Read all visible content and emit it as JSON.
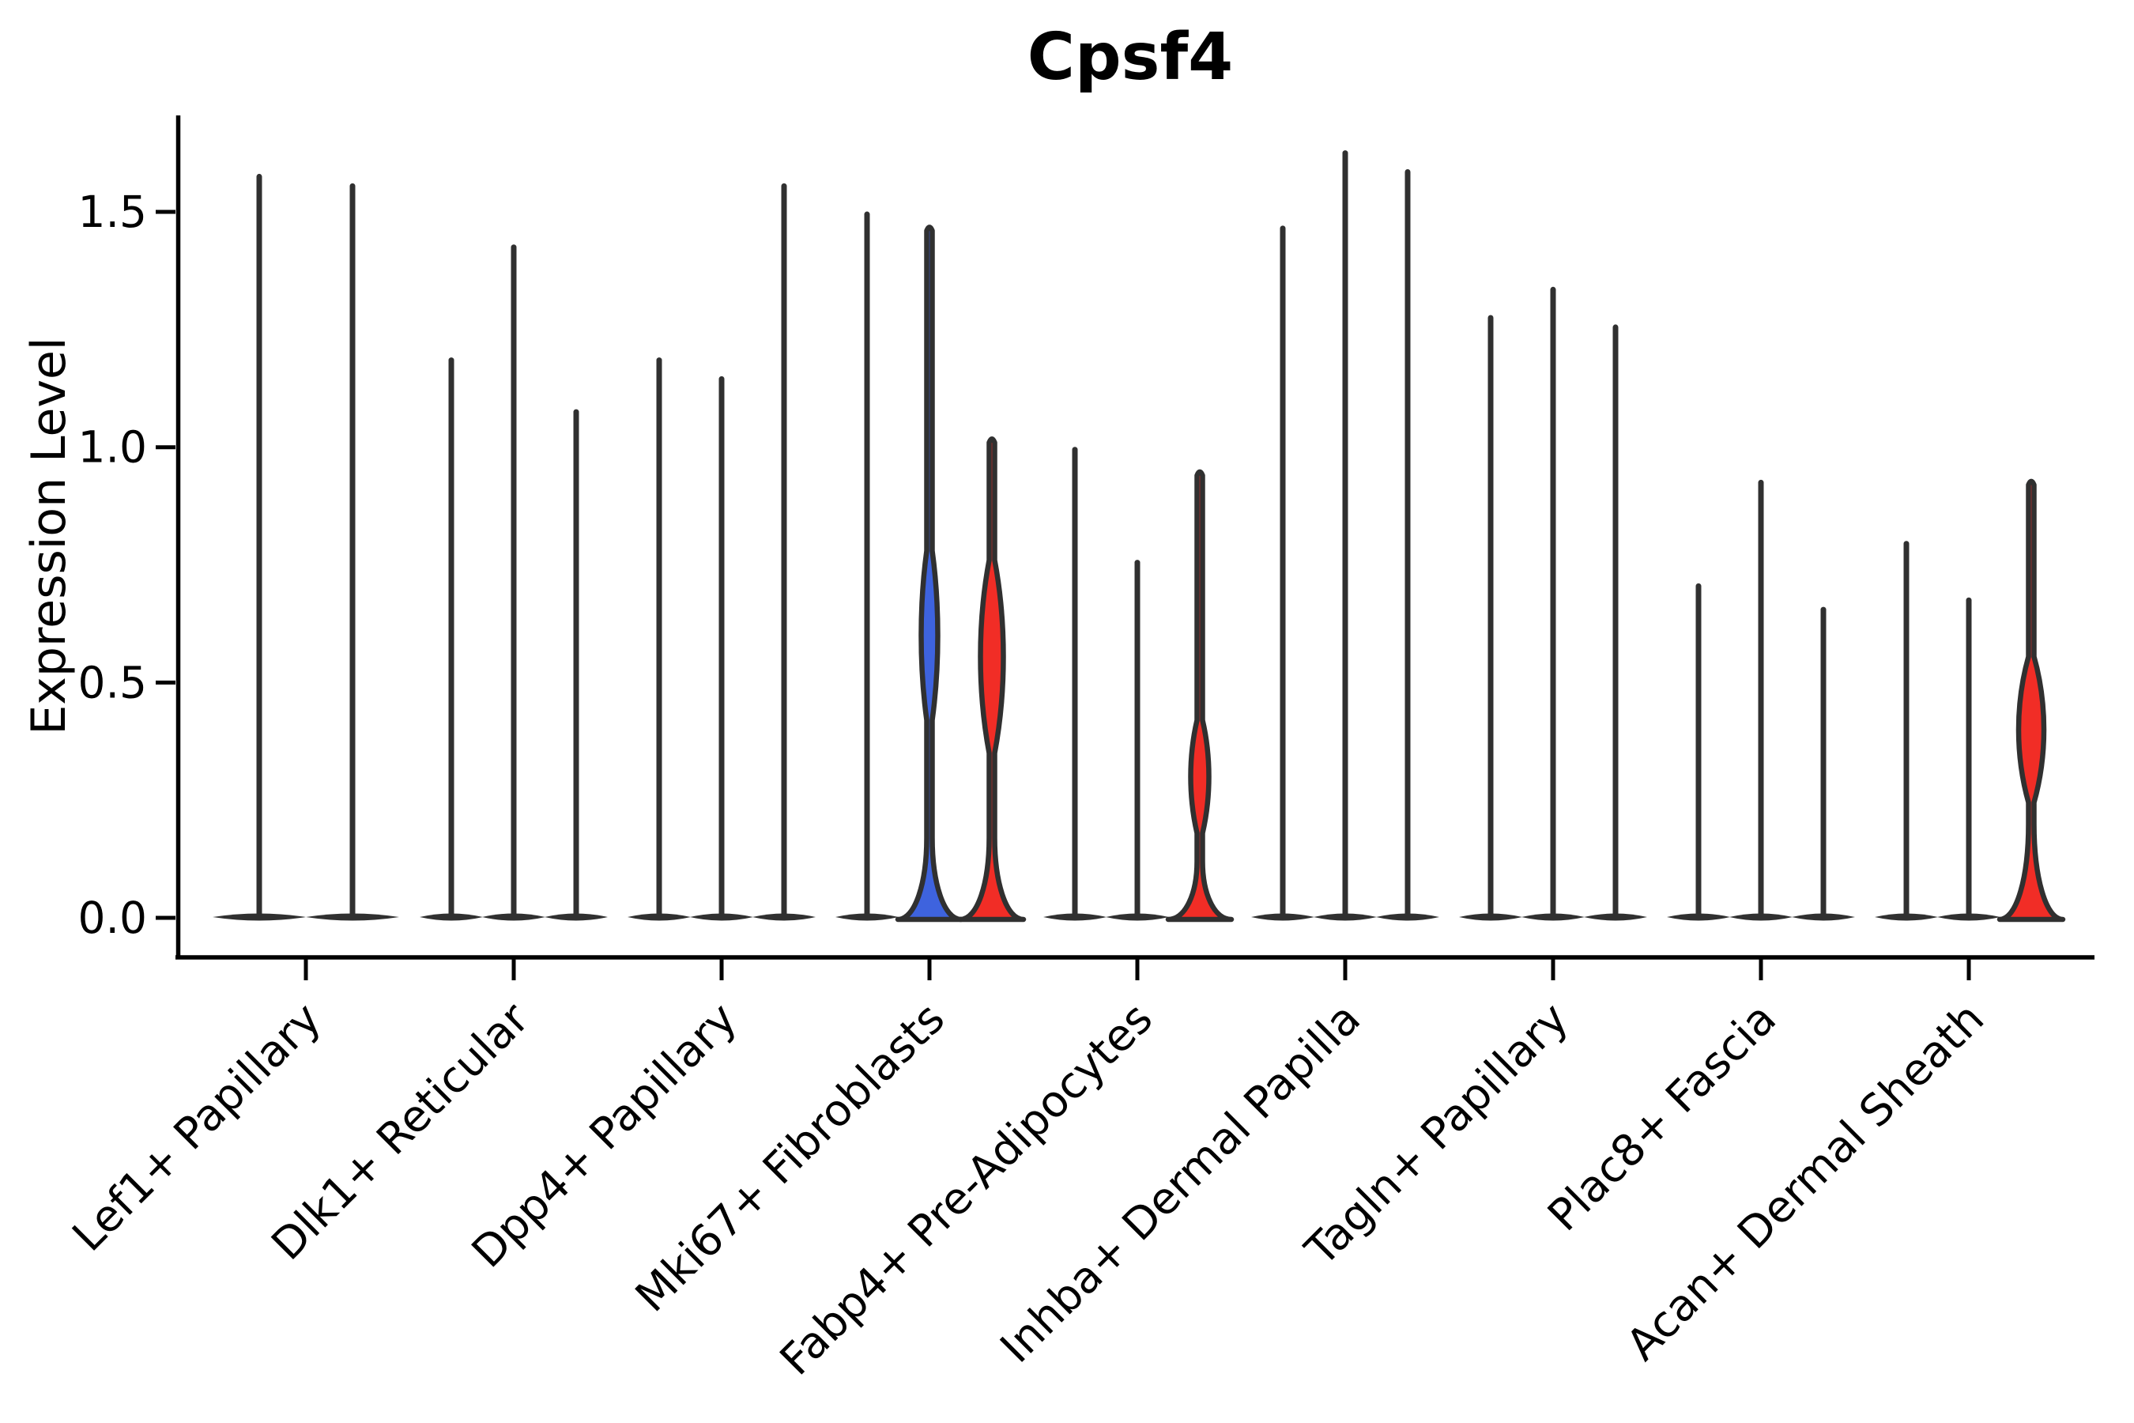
{
  "chart_data": {
    "type": "violin",
    "title": "Cpsf4",
    "ylabel": "Expression Level",
    "xlabel": "",
    "ylim": [
      0,
      1.7
    ],
    "ytick_labels": [
      "0.0",
      "0.5",
      "1.0",
      "1.5"
    ],
    "ytick_values": [
      0.0,
      0.5,
      1.0,
      1.5
    ],
    "grid": "off",
    "legend": "none",
    "colors": {
      "stroke": "#303030",
      "axis": "#000000",
      "blue_fill": "#3E63DE",
      "red_fill": "#F12D26",
      "background": "#ffffff"
    },
    "categories": [
      "Lef1+ Papillary",
      "Dlk1+ Reticular",
      "Dpp4+ Papillary",
      "Mki67+ Fibroblasts",
      "Fabp4+ Pre-Adipocytes",
      "Inhba+ Dermal Papilla",
      "Tagln+ Papillary",
      "Plac8+ Fascia",
      "Acan+ Dermal Sheath"
    ],
    "groups": [
      {
        "label": "Lef1+ Papillary",
        "violins": [
          {
            "max": 1.58,
            "fill": "none"
          },
          {
            "max": 1.56,
            "fill": "none"
          }
        ]
      },
      {
        "label": "Dlk1+ Reticular",
        "violins": [
          {
            "max": 1.19,
            "fill": "none"
          },
          {
            "max": 1.43,
            "fill": "none"
          },
          {
            "max": 1.08,
            "fill": "none"
          }
        ]
      },
      {
        "label": "Dpp4+ Papillary",
        "violins": [
          {
            "max": 1.19,
            "fill": "none"
          },
          {
            "max": 1.15,
            "fill": "none"
          },
          {
            "max": 1.56,
            "fill": "none"
          }
        ]
      },
      {
        "label": "Mki67+ Fibroblasts",
        "violins": [
          {
            "max": 1.5,
            "fill": "none"
          },
          {
            "max": 1.46,
            "fill": "blue",
            "bulge": {
              "center": 0.6,
              "half": 0.18,
              "width": 7
            },
            "flare_start": 0.17
          },
          {
            "max": 1.01,
            "fill": "red",
            "bulge": {
              "center": 0.555,
              "half": 0.205,
              "width": 11
            },
            "flare_start": 0.17
          }
        ]
      },
      {
        "label": "Fabp4+ Pre-Adipocytes",
        "violins": [
          {
            "max": 1.0,
            "fill": "none"
          },
          {
            "max": 0.76,
            "fill": "none"
          },
          {
            "max": 0.94,
            "fill": "red",
            "bulge": {
              "center": 0.3,
              "half": 0.12,
              "width": 8
            },
            "flare_start": 0.12
          }
        ]
      },
      {
        "label": "Inhba+ Dermal Papilla",
        "violins": [
          {
            "max": 1.47,
            "fill": "none"
          },
          {
            "max": 1.63,
            "fill": "none"
          },
          {
            "max": 1.59,
            "fill": "none"
          }
        ]
      },
      {
        "label": "Tagln+ Papillary",
        "violins": [
          {
            "max": 1.28,
            "fill": "none"
          },
          {
            "max": 1.34,
            "fill": "none"
          },
          {
            "max": 1.26,
            "fill": "none"
          }
        ]
      },
      {
        "label": "Plac8+ Fascia",
        "violins": [
          {
            "max": 0.71,
            "fill": "none"
          },
          {
            "max": 0.93,
            "fill": "none"
          },
          {
            "max": 0.66,
            "fill": "none"
          }
        ]
      },
      {
        "label": "Acan+ Dermal Sheath",
        "violins": [
          {
            "max": 0.8,
            "fill": "none"
          },
          {
            "max": 0.68,
            "fill": "none"
          },
          {
            "max": 0.92,
            "fill": "red",
            "bulge": {
              "center": 0.4,
              "half": 0.155,
              "width": 12.5
            },
            "flare_start": 0.2
          }
        ]
      }
    ]
  }
}
